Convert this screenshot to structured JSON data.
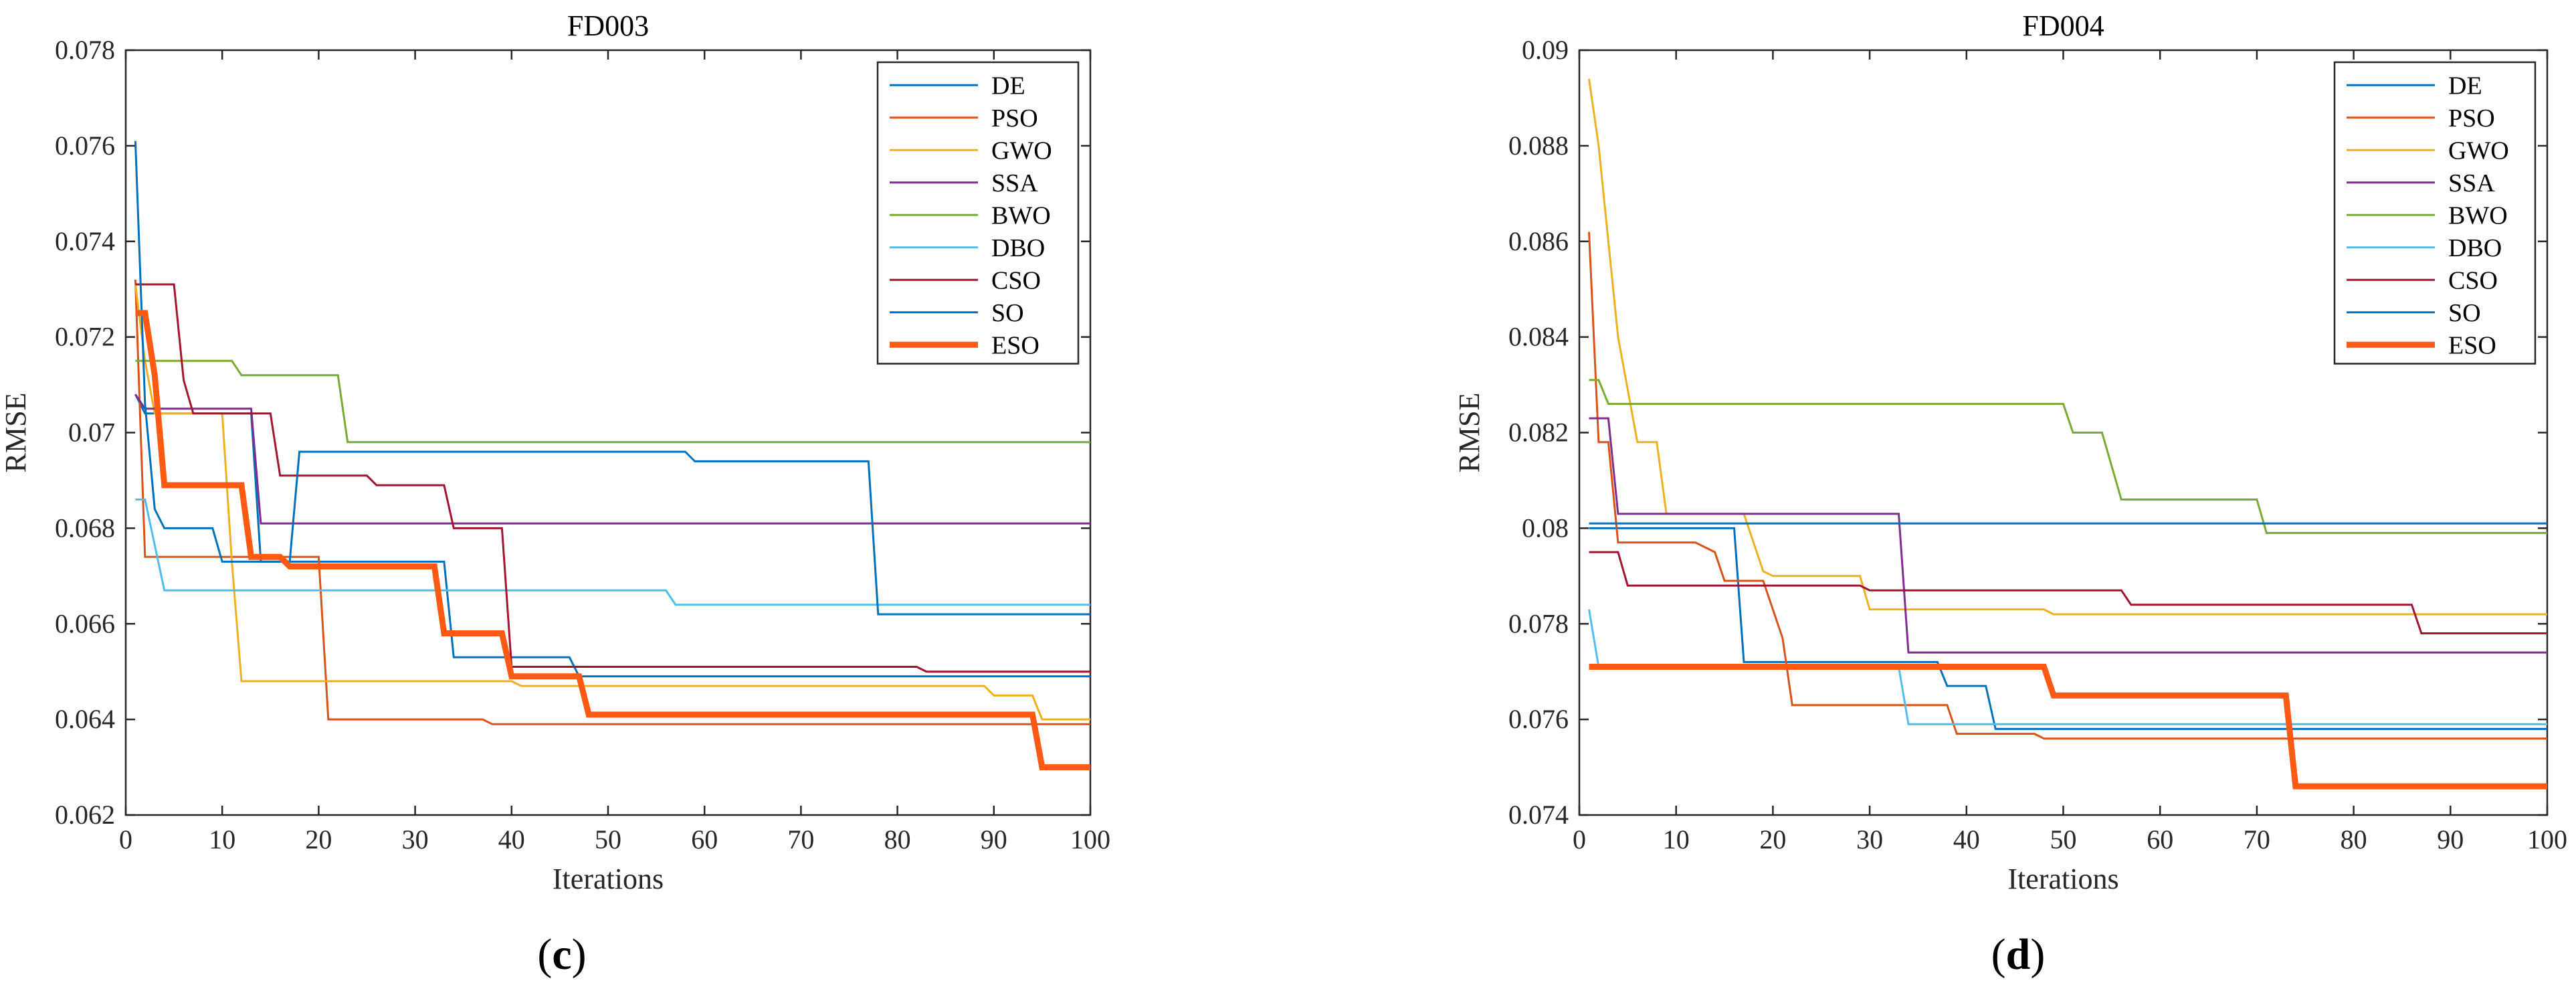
{
  "chart_data": [
    {
      "type": "line",
      "title": "FD003",
      "xlabel": "Iterations",
      "ylabel": "RMSE",
      "panel_label": "c",
      "xlim": [
        0,
        100
      ],
      "ylim": [
        0.062,
        0.078
      ],
      "xticks": [
        0,
        10,
        20,
        30,
        40,
        50,
        60,
        70,
        80,
        90,
        100
      ],
      "yticks": [
        0.062,
        0.064,
        0.066,
        0.068,
        0.07,
        0.072,
        0.074,
        0.076,
        0.078
      ],
      "xtick_labels": [
        "0",
        "10",
        "20",
        "30",
        "40",
        "50",
        "60",
        "70",
        "80",
        "90",
        "100"
      ],
      "ytick_labels": [
        "0.062",
        "0.064",
        "0.066",
        "0.068",
        "0.07",
        "0.072",
        "0.074",
        "0.076",
        "0.078"
      ],
      "legend_position": "top-right",
      "series": [
        {
          "name": "DE",
          "color": "#0072BD",
          "width": 3,
          "points": [
            [
              1,
              0.0708
            ],
            [
              2,
              0.0704
            ],
            [
              13,
              0.0704
            ],
            [
              14,
              0.0673
            ],
            [
              33,
              0.0673
            ],
            [
              34,
              0.0653
            ],
            [
              46,
              0.0653
            ],
            [
              47,
              0.0649
            ],
            [
              100,
              0.0649
            ]
          ]
        },
        {
          "name": "PSO",
          "color": "#D95319",
          "width": 3,
          "points": [
            [
              1,
              0.0732
            ],
            [
              2,
              0.0674
            ],
            [
              20,
              0.0674
            ],
            [
              21,
              0.064
            ],
            [
              37,
              0.064
            ],
            [
              38,
              0.0639
            ],
            [
              100,
              0.0639
            ]
          ]
        },
        {
          "name": "GWO",
          "color": "#EDB120",
          "width": 3,
          "points": [
            [
              1,
              0.0731
            ],
            [
              2,
              0.0715
            ],
            [
              3,
              0.0704
            ],
            [
              10,
              0.0704
            ],
            [
              11,
              0.0673
            ],
            [
              12,
              0.0648
            ],
            [
              40,
              0.0648
            ],
            [
              41,
              0.0647
            ],
            [
              89,
              0.0647
            ],
            [
              90,
              0.0645
            ],
            [
              94,
              0.0645
            ],
            [
              95,
              0.064
            ],
            [
              100,
              0.064
            ]
          ]
        },
        {
          "name": "SSA",
          "color": "#7E2F8E",
          "width": 3,
          "points": [
            [
              1,
              0.0708
            ],
            [
              2,
              0.0705
            ],
            [
              13,
              0.0705
            ],
            [
              14,
              0.0681
            ],
            [
              100,
              0.0681
            ]
          ]
        },
        {
          "name": "BWO",
          "color": "#77AC30",
          "width": 3,
          "points": [
            [
              1,
              0.0715
            ],
            [
              11,
              0.0715
            ],
            [
              12,
              0.0712
            ],
            [
              22,
              0.0712
            ],
            [
              23,
              0.0698
            ],
            [
              100,
              0.0698
            ]
          ]
        },
        {
          "name": "DBO",
          "color": "#4DBEEE",
          "width": 3,
          "points": [
            [
              1,
              0.0686
            ],
            [
              2,
              0.0686
            ],
            [
              4,
              0.0667
            ],
            [
              56,
              0.0667
            ],
            [
              57,
              0.0664
            ],
            [
              100,
              0.0664
            ]
          ]
        },
        {
          "name": "CSO",
          "color": "#A2142F",
          "width": 3,
          "points": [
            [
              1,
              0.0731
            ],
            [
              5,
              0.0731
            ],
            [
              6,
              0.0711
            ],
            [
              7,
              0.0704
            ],
            [
              15,
              0.0704
            ],
            [
              16,
              0.0691
            ],
            [
              25,
              0.0691
            ],
            [
              26,
              0.0689
            ],
            [
              33,
              0.0689
            ],
            [
              34,
              0.068
            ],
            [
              39,
              0.068
            ],
            [
              40,
              0.0651
            ],
            [
              82,
              0.0651
            ],
            [
              83,
              0.065
            ],
            [
              100,
              0.065
            ]
          ]
        },
        {
          "name": "SO",
          "color": "#0072BD",
          "width": 3,
          "points": [
            [
              1,
              0.0761
            ],
            [
              2,
              0.0706
            ],
            [
              3,
              0.0684
            ],
            [
              4,
              0.068
            ],
            [
              9,
              0.068
            ],
            [
              10,
              0.0673
            ],
            [
              17,
              0.0673
            ],
            [
              18,
              0.0696
            ],
            [
              58,
              0.0696
            ],
            [
              59,
              0.0694
            ],
            [
              77,
              0.0694
            ],
            [
              78,
              0.0662
            ],
            [
              100,
              0.0662
            ]
          ]
        },
        {
          "name": "ESO",
          "color": "#FF5A14",
          "width": 9,
          "points": [
            [
              1,
              0.0725
            ],
            [
              2,
              0.0725
            ],
            [
              3,
              0.0712
            ],
            [
              4,
              0.0689
            ],
            [
              11,
              0.0689
            ],
            [
              12,
              0.0689
            ],
            [
              13,
              0.0674
            ],
            [
              16,
              0.0674
            ],
            [
              17,
              0.0672
            ],
            [
              32,
              0.0672
            ],
            [
              33,
              0.0658
            ],
            [
              39,
              0.0658
            ],
            [
              40,
              0.0649
            ],
            [
              47,
              0.0649
            ],
            [
              48,
              0.0641
            ],
            [
              94,
              0.0641
            ],
            [
              95,
              0.063
            ],
            [
              100,
              0.063
            ]
          ]
        }
      ]
    },
    {
      "type": "line",
      "title": "FD004",
      "xlabel": "Iterations",
      "ylabel": "RMSE",
      "panel_label": "d",
      "xlim": [
        0,
        100
      ],
      "ylim": [
        0.074,
        0.09
      ],
      "xticks": [
        0,
        10,
        20,
        30,
        40,
        50,
        60,
        70,
        80,
        90,
        100
      ],
      "yticks": [
        0.074,
        0.076,
        0.078,
        0.08,
        0.082,
        0.084,
        0.086,
        0.088,
        0.09
      ],
      "xtick_labels": [
        "0",
        "10",
        "20",
        "30",
        "40",
        "50",
        "60",
        "70",
        "80",
        "90",
        "100"
      ],
      "ytick_labels": [
        "0.074",
        "0.076",
        "0.078",
        "0.08",
        "0.082",
        "0.084",
        "0.086",
        "0.088",
        "0.09"
      ],
      "legend_position": "top-right",
      "series": [
        {
          "name": "DE",
          "color": "#0072BD",
          "width": 3,
          "points": [
            [
              1,
              0.08
            ],
            [
              16,
              0.08
            ],
            [
              17,
              0.0772
            ],
            [
              37,
              0.0772
            ],
            [
              38,
              0.0767
            ],
            [
              42,
              0.0767
            ],
            [
              43,
              0.0758
            ],
            [
              100,
              0.0758
            ]
          ]
        },
        {
          "name": "PSO",
          "color": "#D95319",
          "width": 3,
          "points": [
            [
              1,
              0.0862
            ],
            [
              2,
              0.0818
            ],
            [
              3,
              0.0818
            ],
            [
              4,
              0.0797
            ],
            [
              12,
              0.0797
            ],
            [
              14,
              0.0795
            ],
            [
              15,
              0.0789
            ],
            [
              19,
              0.0789
            ],
            [
              20,
              0.0783
            ],
            [
              21,
              0.0777
            ],
            [
              22,
              0.0763
            ],
            [
              38,
              0.0763
            ],
            [
              39,
              0.0757
            ],
            [
              47,
              0.0757
            ],
            [
              48,
              0.0756
            ],
            [
              100,
              0.0756
            ]
          ]
        },
        {
          "name": "GWO",
          "color": "#EDB120",
          "width": 3,
          "points": [
            [
              1,
              0.0894
            ],
            [
              2,
              0.088
            ],
            [
              4,
              0.084
            ],
            [
              6,
              0.0818
            ],
            [
              8,
              0.0818
            ],
            [
              9,
              0.0803
            ],
            [
              17,
              0.0803
            ],
            [
              19,
              0.0791
            ],
            [
              20,
              0.079
            ],
            [
              29,
              0.079
            ],
            [
              30,
              0.0783
            ],
            [
              48,
              0.0783
            ],
            [
              49,
              0.0782
            ],
            [
              100,
              0.0782
            ]
          ]
        },
        {
          "name": "SSA",
          "color": "#7E2F8E",
          "width": 3,
          "points": [
            [
              1,
              0.0823
            ],
            [
              3,
              0.0823
            ],
            [
              4,
              0.0803
            ],
            [
              33,
              0.0803
            ],
            [
              34,
              0.0774
            ],
            [
              100,
              0.0774
            ]
          ]
        },
        {
          "name": "BWO",
          "color": "#77AC30",
          "width": 3,
          "points": [
            [
              1,
              0.0831
            ],
            [
              2,
              0.0831
            ],
            [
              3,
              0.0826
            ],
            [
              50,
              0.0826
            ],
            [
              51,
              0.082
            ],
            [
              54,
              0.082
            ],
            [
              56,
              0.0806
            ],
            [
              70,
              0.0806
            ],
            [
              71,
              0.0799
            ],
            [
              100,
              0.0799
            ]
          ]
        },
        {
          "name": "DBO",
          "color": "#4DBEEE",
          "width": 3,
          "points": [
            [
              1,
              0.0783
            ],
            [
              2,
              0.0771
            ],
            [
              33,
              0.0771
            ],
            [
              34,
              0.0759
            ],
            [
              100,
              0.0759
            ]
          ]
        },
        {
          "name": "CSO",
          "color": "#A2142F",
          "width": 3,
          "points": [
            [
              1,
              0.0795
            ],
            [
              4,
              0.0795
            ],
            [
              5,
              0.0788
            ],
            [
              29,
              0.0788
            ],
            [
              30,
              0.0787
            ],
            [
              56,
              0.0787
            ],
            [
              57,
              0.0784
            ],
            [
              86,
              0.0784
            ],
            [
              87,
              0.0778
            ],
            [
              100,
              0.0778
            ]
          ]
        },
        {
          "name": "SO",
          "color": "#0072BD",
          "width": 3,
          "points": [
            [
              1,
              0.0801
            ],
            [
              100,
              0.0801
            ]
          ]
        },
        {
          "name": "ESO",
          "color": "#FF5A14",
          "width": 9,
          "points": [
            [
              1,
              0.0771
            ],
            [
              48,
              0.0771
            ],
            [
              49,
              0.0765
            ],
            [
              73,
              0.0765
            ],
            [
              74,
              0.0746
            ],
            [
              100,
              0.0746
            ]
          ]
        }
      ]
    }
  ]
}
